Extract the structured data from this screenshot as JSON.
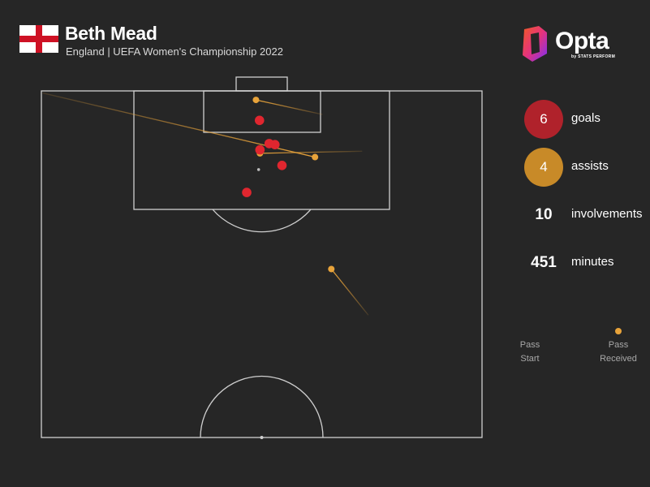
{
  "header": {
    "player_name": "Beth Mead",
    "subtitle": "England | UEFA Women's Championship 2022",
    "flag_icon": "england-flag-icon"
  },
  "brand": {
    "name": "Opta",
    "tagline": "by STATS PERFORM",
    "logo_icon": "opta-logo-icon"
  },
  "stats": {
    "goals": {
      "value": "6",
      "label": "goals",
      "color": "#b0222b"
    },
    "assists": {
      "value": "4",
      "label": "assists",
      "color": "#c88a28"
    },
    "involvements": {
      "value": "10",
      "label": "involvements"
    },
    "minutes": {
      "value": "451",
      "label": "minutes"
    }
  },
  "legend": {
    "start_line1": "Pass",
    "start_line2": "Start",
    "end_line1": "Pass",
    "end_line2": "Received",
    "color": "#d89a2e"
  },
  "colors": {
    "background": "#262626",
    "pitch_lines": "#cfcfcf",
    "goal": "#e0262f",
    "assist": "#e8a33a"
  },
  "chart_data": {
    "type": "scatter",
    "description_units": "pitch coordinates: x = width across pitch 0-100 (left touchline to right touchline), y = distance from attacking goal line 0-100 (0 = goal line, 100 = halfway line)",
    "goals": [
      {
        "x": 49.5,
        "y": 8.5
      },
      {
        "x": 51.7,
        "y": 15.2
      },
      {
        "x": 53.0,
        "y": 15.5
      },
      {
        "x": 49.6,
        "y": 17.0
      },
      {
        "x": 54.6,
        "y": 21.5
      },
      {
        "x": 46.6,
        "y": 29.3
      }
    ],
    "assists": [
      {
        "start": {
          "x": 63.8,
          "y": 6.8
        },
        "end": {
          "x": 48.7,
          "y": 2.6
        }
      },
      {
        "start": {
          "x": 72.8,
          "y": 17.4
        },
        "end": {
          "x": 49.6,
          "y": 18.0
        }
      },
      {
        "start": {
          "x": 0.3,
          "y": 0.6
        },
        "end": {
          "x": 62.1,
          "y": 19.1
        }
      },
      {
        "start": {
          "x": 74.2,
          "y": 64.7
        },
        "end": {
          "x": 65.8,
          "y": 51.4
        }
      }
    ],
    "shot_origin_marker": {
      "x": 49.3,
      "y": 22.7
    },
    "xlim": [
      0,
      100
    ],
    "ylim": [
      0,
      100
    ]
  }
}
